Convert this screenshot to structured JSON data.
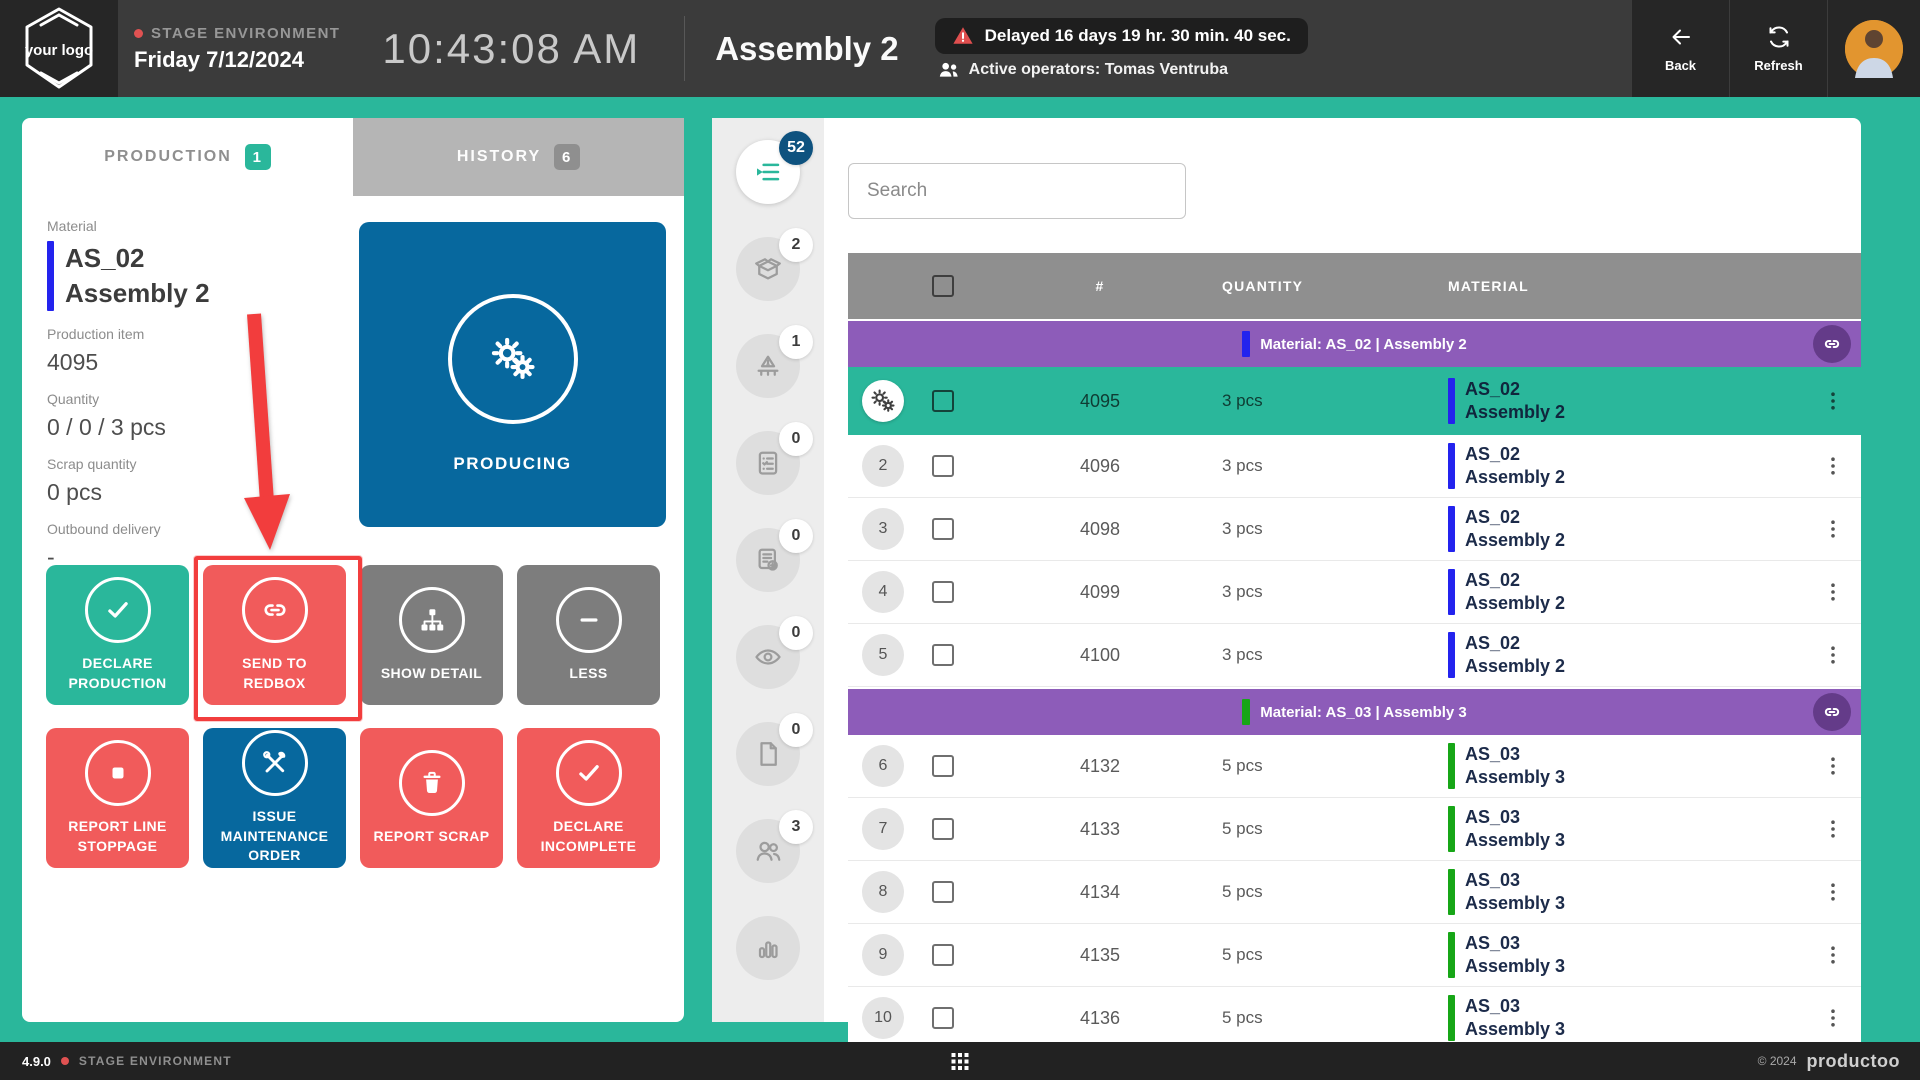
{
  "colors": {
    "teal": "#2ab79b",
    "red": "#f15b5b",
    "blue": "#07689e",
    "gray": "#7d7d7d",
    "purple": "#8d5cb9",
    "annotation": "#f23d3d",
    "bar_blue": "#2323ee",
    "bar_green": "#17a617",
    "badge_dark_blue": "#0e527f"
  },
  "header": {
    "logo_text": "your logo",
    "environment": "STAGE ENVIRONMENT",
    "date": "Friday 7/12/2024",
    "time": "10:43:08 AM",
    "title": "Assembly 2",
    "delay_message": "Delayed 16 days 19 hr. 30 min. 40 sec.",
    "operators": "Active operators: Tomas Ventruba",
    "back_label": "Back",
    "refresh_label": "Refresh"
  },
  "left_panel": {
    "tabs": [
      {
        "label": "PRODUCTION",
        "badge": "1",
        "active": true
      },
      {
        "label": "HISTORY",
        "badge": "6",
        "active": false
      }
    ],
    "material_label": "Material",
    "material_code": "AS_02",
    "material_name": "Assembly 2",
    "production_item_label": "Production item",
    "production_item": "4095",
    "quantity_label": "Quantity",
    "quantity": "0 / 0 / 3 pcs",
    "scrap_label": "Scrap quantity",
    "scrap": "0 pcs",
    "outbound_label": "Outbound delivery",
    "outbound": "-",
    "producing_label": "PRODUCING",
    "actions": [
      {
        "label": "DECLARE PRODUCTION",
        "icon": "check",
        "color": "green",
        "highlighted": false
      },
      {
        "label": "SEND TO REDBOX",
        "icon": "link",
        "color": "red",
        "highlighted": true
      },
      {
        "label": "SHOW DETAIL",
        "icon": "sitemap",
        "color": "gray",
        "highlighted": false
      },
      {
        "label": "LESS",
        "icon": "minus",
        "color": "gray",
        "highlighted": false
      },
      {
        "label": "REPORT LINE STOPPAGE",
        "icon": "stop",
        "color": "red",
        "highlighted": false
      },
      {
        "label": "ISSUE MAINTENANCE ORDER",
        "icon": "tools",
        "color": "blue",
        "highlighted": false
      },
      {
        "label": "REPORT SCRAP",
        "icon": "trash",
        "color": "red",
        "highlighted": false
      },
      {
        "label": "DECLARE INCOMPLETE",
        "icon": "check",
        "color": "red",
        "highlighted": false
      }
    ]
  },
  "icon_rail": {
    "items": [
      {
        "name": "production-queue",
        "badge": "52",
        "active": true
      },
      {
        "name": "packaging-box",
        "badge": "2",
        "active": false
      },
      {
        "name": "line-stoppage",
        "badge": "1",
        "active": false
      },
      {
        "name": "checklist",
        "badge": "0",
        "active": false
      },
      {
        "name": "work-confirmation",
        "badge": "0",
        "active": false
      },
      {
        "name": "inspection",
        "badge": "0",
        "active": false
      },
      {
        "name": "documents",
        "badge": "0",
        "active": false
      },
      {
        "name": "operators",
        "badge": "3",
        "active": false
      },
      {
        "name": "statistics",
        "badge": "",
        "active": false
      }
    ]
  },
  "table": {
    "search_placeholder": "Search",
    "columns": [
      "#",
      "QUANTITY",
      "MATERIAL"
    ],
    "groups": [
      {
        "label": "Material: AS_02 | Assembly 2",
        "bar_color": "#2323ee",
        "rows": [
          {
            "num": "",
            "id": "4095",
            "qty": "3 pcs",
            "code": "AS_02",
            "name": "Assembly 2",
            "selected": true
          },
          {
            "num": "2",
            "id": "4096",
            "qty": "3 pcs",
            "code": "AS_02",
            "name": "Assembly 2",
            "selected": false
          },
          {
            "num": "3",
            "id": "4098",
            "qty": "3 pcs",
            "code": "AS_02",
            "name": "Assembly 2",
            "selected": false
          },
          {
            "num": "4",
            "id": "4099",
            "qty": "3 pcs",
            "code": "AS_02",
            "name": "Assembly 2",
            "selected": false
          },
          {
            "num": "5",
            "id": "4100",
            "qty": "3 pcs",
            "code": "AS_02",
            "name": "Assembly 2",
            "selected": false
          }
        ]
      },
      {
        "label": "Material: AS_03 | Assembly 3",
        "bar_color": "#17a617",
        "rows": [
          {
            "num": "6",
            "id": "4132",
            "qty": "5 pcs",
            "code": "AS_03",
            "name": "Assembly 3",
            "selected": false
          },
          {
            "num": "7",
            "id": "4133",
            "qty": "5 pcs",
            "code": "AS_03",
            "name": "Assembly 3",
            "selected": false
          },
          {
            "num": "8",
            "id": "4134",
            "qty": "5 pcs",
            "code": "AS_03",
            "name": "Assembly 3",
            "selected": false
          },
          {
            "num": "9",
            "id": "4135",
            "qty": "5 pcs",
            "code": "AS_03",
            "name": "Assembly 3",
            "selected": false
          },
          {
            "num": "10",
            "id": "4136",
            "qty": "5 pcs",
            "code": "AS_03",
            "name": "Assembly 3",
            "selected": false
          }
        ]
      }
    ]
  },
  "footer": {
    "version": "4.9.0",
    "environment": "STAGE ENVIRONMENT",
    "copyright": "© 2024",
    "brand": "productoo"
  }
}
